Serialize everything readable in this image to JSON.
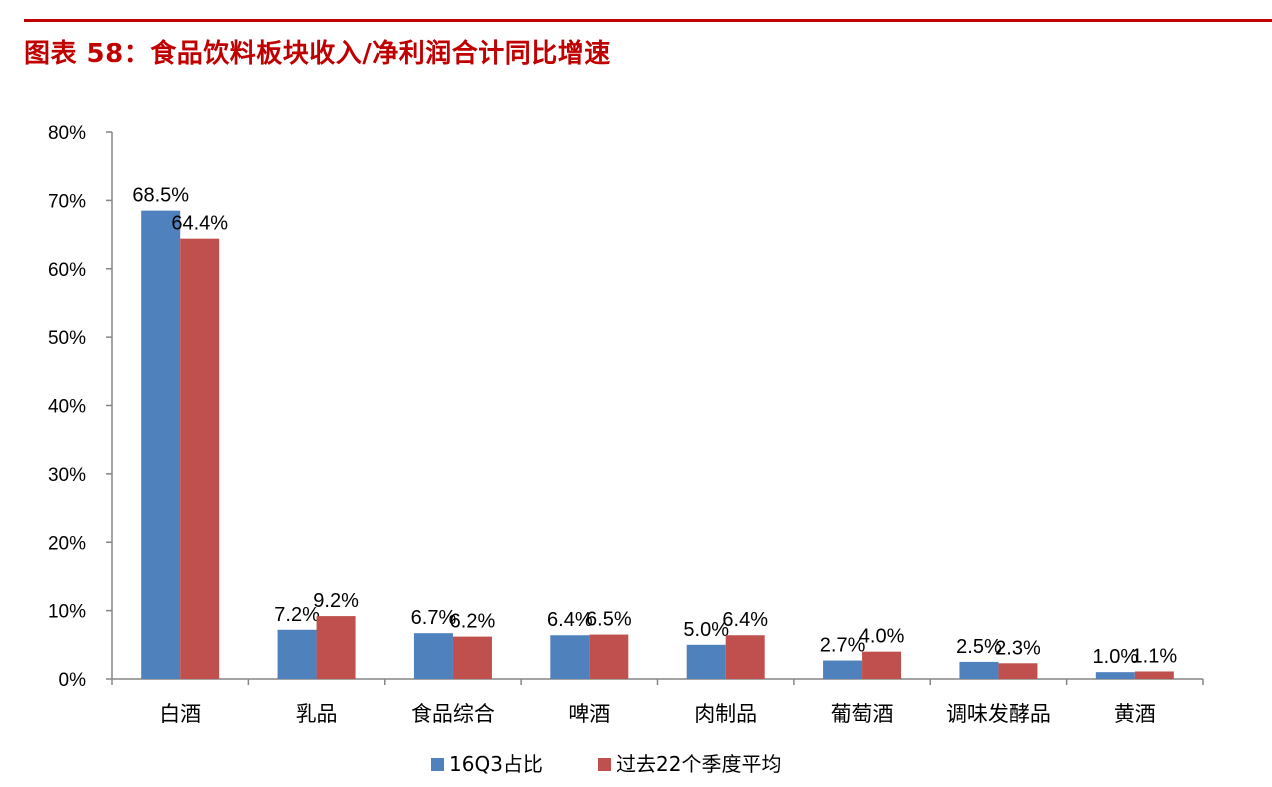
{
  "title": "图表 58：食品饮料板块收入/净利润合计同比增速",
  "colors": {
    "title": "#c00000",
    "series_1": "#4f81bd",
    "series_2": "#c0504d",
    "axis": "#868686"
  },
  "chart_data": {
    "type": "bar",
    "categories": [
      "白酒",
      "乳品",
      "食品综合",
      "啤酒",
      "肉制品",
      "葡萄酒",
      "调味发酵品",
      "黄酒"
    ],
    "series": [
      {
        "name": "16Q3占比",
        "values": [
          68.5,
          7.2,
          6.7,
          6.4,
          5.0,
          2.7,
          2.5,
          1.0
        ],
        "labels": [
          "68.5%",
          "7.2%",
          "6.7%",
          "6.4%",
          "5.0%",
          "2.7%",
          "2.5%",
          "1.0%"
        ]
      },
      {
        "name": "过去22个季度平均",
        "values": [
          64.4,
          9.2,
          6.2,
          6.5,
          6.4,
          4.0,
          2.3,
          1.1
        ],
        "labels": [
          "64.4%",
          "9.2%",
          "6.2%",
          "6.5%",
          "6.4%",
          "4.0%",
          "2.3%",
          "1.1%"
        ]
      }
    ],
    "y_ticks": [
      "0%",
      "10%",
      "20%",
      "30%",
      "40%",
      "50%",
      "60%",
      "70%",
      "80%"
    ],
    "ylim": [
      0,
      80
    ],
    "grid": false,
    "legend_position": "bottom"
  }
}
